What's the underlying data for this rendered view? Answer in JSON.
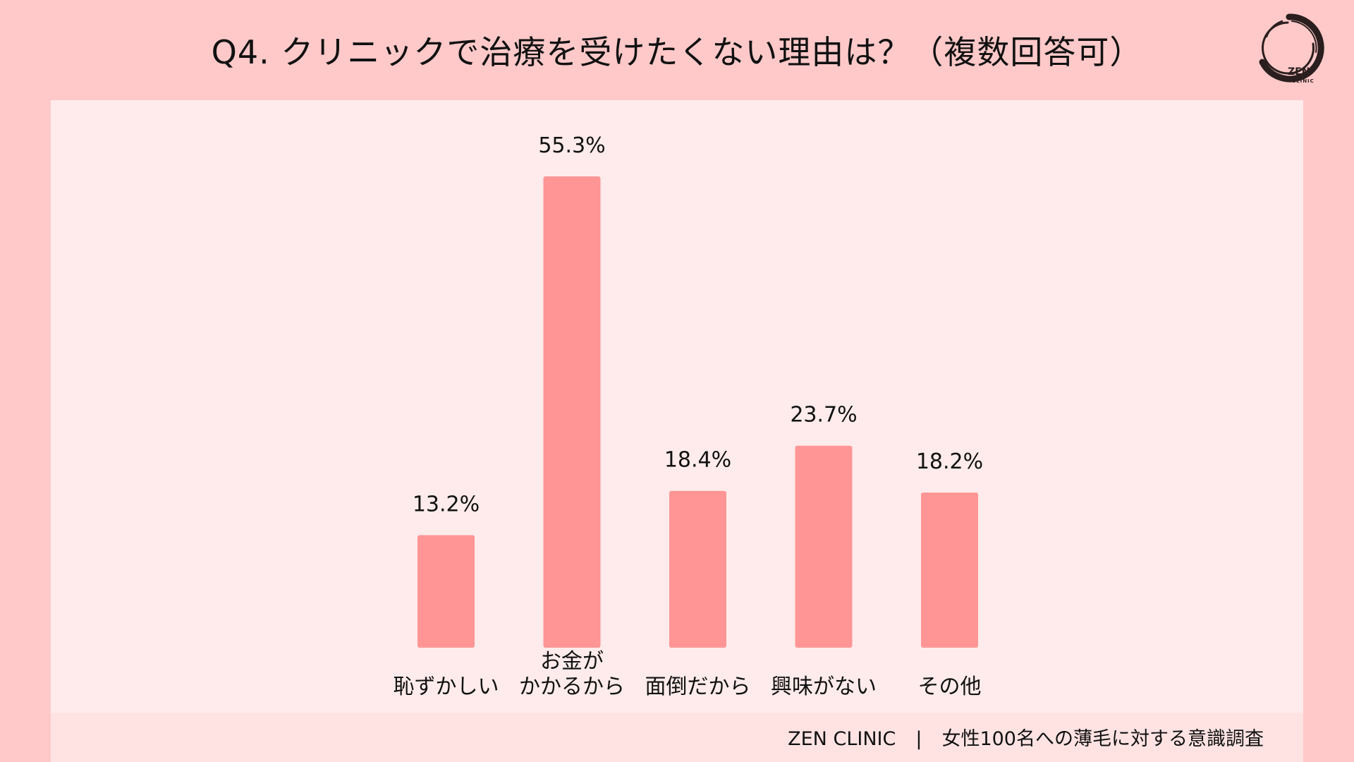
{
  "title": "Q4. クリニックで治療を受けたくない理由は？（複数回答可）",
  "logo": {
    "name": "ZEN",
    "sub": "CLINIC"
  },
  "footer": {
    "brand": "ZEN CLINIC",
    "separator": "|",
    "survey": "女性100名への薄毛に対する意識調査"
  },
  "colors": {
    "background": "#FFC9C9",
    "panel": "#FFEBEB",
    "bar": "#FF9595"
  },
  "chart_data": {
    "type": "bar",
    "categories": [
      [
        "恥ずかしい"
      ],
      [
        "お金が",
        "かかるから"
      ],
      [
        "面倒だから"
      ],
      [
        "興味がない"
      ],
      [
        "その他"
      ]
    ],
    "values": [
      13.2,
      55.3,
      18.4,
      23.7,
      18.2
    ],
    "value_labels": [
      "13.2%",
      "55.3%",
      "18.4%",
      "23.7%",
      "18.2%"
    ],
    "unit": "%",
    "ylim": [
      0,
      55.3
    ],
    "grid": false,
    "legend": "none"
  }
}
